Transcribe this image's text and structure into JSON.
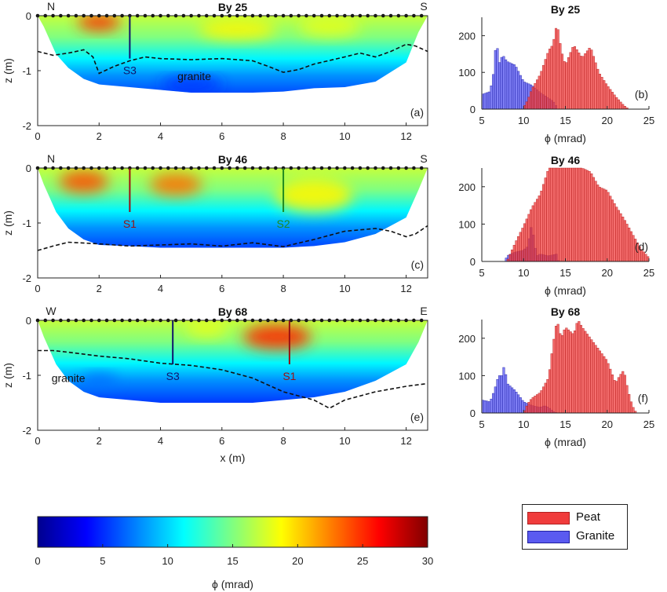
{
  "colors": {
    "peat": "#f03c3c",
    "granite": "#3a3af0",
    "s1": "#9b1010",
    "s2": "#208a20",
    "s3": "#10146b",
    "axis": "#222222",
    "colormap": [
      "#00008f",
      "#0000ff",
      "#0080ff",
      "#00ffff",
      "#80ff80",
      "#ffff00",
      "#ff8000",
      "#ff0000",
      "#800000"
    ]
  },
  "chart_data": [
    {
      "type": "heatmap",
      "id": "a",
      "panel_label": "(a)",
      "title": "By 25",
      "ylabel": "z (m)",
      "xlabel": "",
      "xlim": [
        0,
        12.7
      ],
      "ylim": [
        -2,
        0
      ],
      "xticks": [
        "0",
        "2",
        "4",
        "6",
        "8",
        "10",
        "12"
      ],
      "yticks": [
        "0",
        "-1",
        "-2"
      ],
      "corner_left": "N",
      "corner_right": "S",
      "profile": {
        "x": [
          0,
          0.2,
          0.6,
          1,
          1.5,
          2,
          3,
          4,
          5,
          6,
          7,
          8,
          9,
          10,
          11,
          12,
          12.4,
          12.7
        ],
        "z": [
          0,
          -0.2,
          -0.7,
          -0.95,
          -1.15,
          -1.25,
          -1.3,
          -1.35,
          -1.4,
          -1.4,
          -1.4,
          -1.38,
          -1.32,
          -1.3,
          -1.2,
          -0.85,
          -0.3,
          0
        ]
      },
      "contour": {
        "x": [
          0,
          0.5,
          1,
          1.5,
          1.8,
          2,
          2.5,
          3,
          3.5,
          4,
          5,
          6,
          7,
          7.5,
          8,
          8.5,
          9,
          10,
          10.5,
          11,
          11.5,
          12,
          12.3,
          12.7
        ],
        "z": [
          -0.65,
          -0.72,
          -0.68,
          -0.62,
          -0.75,
          -1.05,
          -0.92,
          -0.82,
          -0.75,
          -0.78,
          -0.8,
          -0.78,
          -0.82,
          -0.92,
          -1.03,
          -0.98,
          -0.88,
          -0.75,
          -0.68,
          -0.75,
          -0.65,
          -0.52,
          -0.55,
          -0.65
        ]
      },
      "sensors": [
        {
          "name": "S3",
          "x": 3.0,
          "depth": -0.78,
          "color_key": "s3"
        }
      ],
      "annotations": [
        {
          "text": "granite",
          "x": 5.1,
          "z": -1.1
        }
      ],
      "hot_spots": [
        {
          "x": 2.0,
          "z": -0.12,
          "phi": 25,
          "rx": 1.4,
          "rz": 0.3
        },
        {
          "x": 6.5,
          "z": -0.25,
          "phi": 19,
          "rx": 2.5,
          "rz": 0.35
        },
        {
          "x": 9.5,
          "z": -0.2,
          "phi": 18,
          "rx": 2,
          "rz": 0.35
        },
        {
          "x": 5.0,
          "z": -1.25,
          "phi": 5,
          "rx": 2,
          "rz": 0.25
        }
      ]
    },
    {
      "type": "bar",
      "id": "b",
      "panel_label": "(b)",
      "title": "By 25",
      "xlabel": "ϕ (mrad)",
      "ylabel": "",
      "xlim": [
        5,
        25
      ],
      "ylim": [
        0,
        250
      ],
      "xticks": [
        "5",
        "10",
        "15",
        "20",
        "25"
      ],
      "yticks": [
        "0",
        "100",
        "200"
      ],
      "bin_width": 0.25,
      "series": [
        {
          "name": "Granite",
          "values": [
            [
              5,
              40
            ],
            [
              6,
              48
            ],
            [
              6.5,
              110
            ],
            [
              6.75,
              210
            ],
            [
              7,
              120
            ],
            [
              7.5,
              148
            ],
            [
              8,
              130
            ],
            [
              9,
              120
            ],
            [
              10,
              75
            ],
            [
              11,
              65
            ],
            [
              12,
              45
            ],
            [
              13,
              30
            ],
            [
              13.6,
              20
            ],
            [
              14,
              5
            ]
          ]
        },
        {
          "name": "Peat",
          "values": [
            [
              10,
              5
            ],
            [
              10.5,
              25
            ],
            [
              11,
              55
            ],
            [
              12,
              95
            ],
            [
              13,
              160
            ],
            [
              13.5,
              175
            ],
            [
              14,
              235
            ],
            [
              14.5,
              160
            ],
            [
              15,
              120
            ],
            [
              16,
              175
            ],
            [
              17,
              140
            ],
            [
              18,
              170
            ],
            [
              19,
              100
            ],
            [
              20,
              65
            ],
            [
              21,
              35
            ],
            [
              22,
              10
            ],
            [
              22.6,
              0
            ]
          ]
        }
      ]
    },
    {
      "type": "heatmap",
      "id": "c",
      "panel_label": "(c)",
      "title": "By 46",
      "ylabel": "z (m)",
      "xlabel": "",
      "xlim": [
        0,
        12.7
      ],
      "ylim": [
        -2,
        0
      ],
      "xticks": [
        "0",
        "2",
        "4",
        "6",
        "8",
        "10",
        "12"
      ],
      "yticks": [
        "0",
        "-1",
        "-2"
      ],
      "corner_left": "N",
      "corner_right": "S",
      "profile": {
        "x": [
          0,
          0.2,
          0.6,
          1,
          1.5,
          2,
          3,
          4,
          5,
          6,
          7,
          8,
          9,
          10,
          11,
          12,
          12.4,
          12.7
        ],
        "z": [
          0,
          -0.3,
          -0.8,
          -1.1,
          -1.3,
          -1.4,
          -1.42,
          -1.45,
          -1.45,
          -1.45,
          -1.45,
          -1.45,
          -1.42,
          -1.35,
          -1.2,
          -0.9,
          -0.4,
          0
        ]
      },
      "contour": {
        "x": [
          0,
          0.5,
          1,
          2,
          3,
          4,
          5,
          6,
          7,
          8,
          9,
          10,
          11,
          11.5,
          12,
          12.3,
          12.7
        ],
        "z": [
          -1.5,
          -1.42,
          -1.35,
          -1.38,
          -1.42,
          -1.4,
          -1.38,
          -1.42,
          -1.36,
          -1.43,
          -1.3,
          -1.15,
          -1.1,
          -1.15,
          -1.25,
          -1.2,
          -1.05
        ]
      },
      "sensors": [
        {
          "name": "S1",
          "x": 3.0,
          "depth": -0.8,
          "color_key": "s1"
        },
        {
          "name": "S2",
          "x": 8.0,
          "depth": -0.8,
          "color_key": "s2"
        }
      ],
      "annotations": [],
      "hot_spots": [
        {
          "x": 1.5,
          "z": -0.25,
          "phi": 24,
          "rx": 1.6,
          "rz": 0.4
        },
        {
          "x": 4.5,
          "z": -0.3,
          "phi": 23,
          "rx": 1.7,
          "rz": 0.4
        },
        {
          "x": 9.0,
          "z": -0.5,
          "phi": 19,
          "rx": 2.5,
          "rz": 0.6
        }
      ]
    },
    {
      "type": "bar",
      "id": "d",
      "panel_label": "(d)",
      "title": "By 46",
      "xlabel": "ϕ (mrad)",
      "ylabel": "",
      "xlim": [
        5,
        25
      ],
      "ylim": [
        0,
        250
      ],
      "xticks": [
        "5",
        "10",
        "15",
        "20",
        "25"
      ],
      "yticks": [
        "0",
        "100",
        "200"
      ],
      "bin_width": 0.25,
      "series": [
        {
          "name": "Granite",
          "values": [
            [
              7.8,
              0
            ],
            [
              8,
              15
            ],
            [
              9,
              25
            ],
            [
              10,
              30
            ],
            [
              10.5,
              40
            ],
            [
              11,
              100
            ],
            [
              11.3,
              50
            ],
            [
              11.6,
              15
            ],
            [
              12,
              20
            ],
            [
              13,
              15
            ],
            [
              14,
              20
            ],
            [
              14.2,
              0
            ]
          ]
        },
        {
          "name": "Peat",
          "values": [
            [
              8,
              0
            ],
            [
              9,
              50
            ],
            [
              10,
              95
            ],
            [
              11,
              145
            ],
            [
              12,
              180
            ],
            [
              13,
              250
            ],
            [
              14,
              250
            ],
            [
              15,
              250
            ],
            [
              16,
              250
            ],
            [
              17,
              250
            ],
            [
              18,
              240
            ],
            [
              19,
              200
            ],
            [
              20,
              190
            ],
            [
              21,
              150
            ],
            [
              22,
              115
            ],
            [
              23,
              75
            ],
            [
              24,
              35
            ],
            [
              25,
              10
            ]
          ]
        }
      ]
    },
    {
      "type": "heatmap",
      "id": "e",
      "panel_label": "(e)",
      "title": "By 68",
      "ylabel": "z (m)",
      "xlabel": "x (m)",
      "xlim": [
        0,
        12.7
      ],
      "ylim": [
        -2,
        0
      ],
      "xticks": [
        "0",
        "2",
        "4",
        "6",
        "8",
        "10",
        "12"
      ],
      "yticks": [
        "0",
        "-1",
        "-2"
      ],
      "corner_left": "W",
      "corner_right": "E",
      "profile": {
        "x": [
          0,
          0.2,
          0.6,
          1,
          1.5,
          2,
          3,
          4,
          5,
          6,
          7,
          8,
          9,
          10,
          11,
          12,
          12.4,
          12.7
        ],
        "z": [
          0,
          -0.3,
          -0.8,
          -1.1,
          -1.3,
          -1.4,
          -1.45,
          -1.5,
          -1.5,
          -1.5,
          -1.5,
          -1.45,
          -1.4,
          -1.3,
          -1.1,
          -0.8,
          -0.4,
          0
        ]
      },
      "contour": {
        "x": [
          0,
          0.5,
          1,
          2,
          3,
          4,
          5,
          6,
          7,
          8,
          9,
          9.5,
          10,
          11,
          12,
          12.7
        ],
        "z": [
          -0.55,
          -0.55,
          -0.58,
          -0.65,
          -0.7,
          -0.78,
          -0.82,
          -0.9,
          -1.05,
          -1.3,
          -1.45,
          -1.6,
          -1.45,
          -1.3,
          -1.2,
          -1.15
        ]
      },
      "sensors": [
        {
          "name": "S3",
          "x": 4.4,
          "depth": -0.8,
          "color_key": "s3"
        },
        {
          "name": "S1",
          "x": 8.2,
          "depth": -0.8,
          "color_key": "s1"
        }
      ],
      "annotations": [
        {
          "text": "granite",
          "x": 1.0,
          "z": -1.05
        }
      ],
      "hot_spots": [
        {
          "x": 7.8,
          "z": -0.3,
          "phi": 25,
          "rx": 2.2,
          "rz": 0.45
        },
        {
          "x": 5.5,
          "z": -0.15,
          "phi": 18,
          "rx": 1.4,
          "rz": 0.3
        },
        {
          "x": 2.0,
          "z": -1.1,
          "phi": 7,
          "rx": 1.2,
          "rz": 0.25
        }
      ]
    },
    {
      "type": "bar",
      "id": "f",
      "panel_label": "(f)",
      "title": "By 68",
      "xlabel": "ϕ (mrad)",
      "ylabel": "",
      "xlim": [
        5,
        25
      ],
      "ylim": [
        0,
        250
      ],
      "xticks": [
        "5",
        "10",
        "15",
        "20",
        "25"
      ],
      "yticks": [
        "0",
        "100",
        "200"
      ],
      "bin_width": 0.25,
      "series": [
        {
          "name": "Granite",
          "values": [
            [
              5,
              35
            ],
            [
              6,
              30
            ],
            [
              6.5,
              60
            ],
            [
              7,
              100
            ],
            [
              7.5,
              100
            ],
            [
              7.7,
              135
            ],
            [
              8,
              80
            ],
            [
              9,
              60
            ],
            [
              10,
              30
            ],
            [
              11,
              20
            ],
            [
              12,
              15
            ],
            [
              12.5,
              20
            ],
            [
              13,
              15
            ],
            [
              13.5,
              5
            ],
            [
              14,
              0
            ]
          ]
        },
        {
          "name": "Peat",
          "values": [
            [
              10,
              0
            ],
            [
              10.5,
              25
            ],
            [
              11,
              40
            ],
            [
              12,
              55
            ],
            [
              13,
              95
            ],
            [
              13.5,
              180
            ],
            [
              14,
              250
            ],
            [
              14.5,
              200
            ],
            [
              15,
              230
            ],
            [
              16,
              210
            ],
            [
              16.5,
              250
            ],
            [
              17,
              230
            ],
            [
              18,
              200
            ],
            [
              19,
              170
            ],
            [
              20,
              140
            ],
            [
              21,
              80
            ],
            [
              21.5,
              100
            ],
            [
              22,
              115
            ],
            [
              22.5,
              60
            ],
            [
              23,
              20
            ],
            [
              23.5,
              0
            ]
          ]
        }
      ]
    },
    {
      "type": "colorbar",
      "id": "cb",
      "xlabel": "ϕ (mrad)",
      "range": [
        0,
        30
      ],
      "ticks": [
        "0",
        "5",
        "10",
        "15",
        "20",
        "25",
        "30"
      ]
    }
  ],
  "legend": [
    {
      "label": "Peat",
      "color_key": "peat"
    },
    {
      "label": "Granite",
      "color_key": "granite"
    }
  ]
}
